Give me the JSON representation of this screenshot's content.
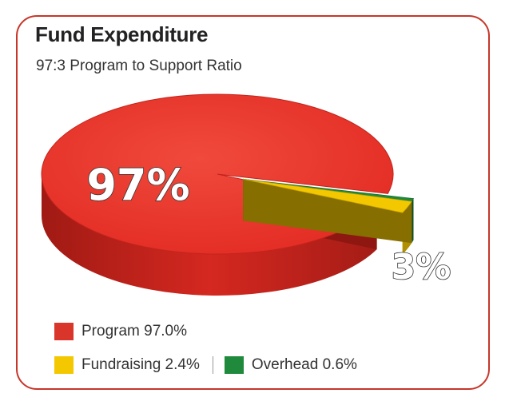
{
  "title": "Fund Expenditure",
  "subtitle": "97:3 Program to Support Ratio",
  "chart_data": {
    "type": "pie",
    "title": "Fund Expenditure",
    "subtitle": "97:3 Program to Support Ratio",
    "slices": [
      {
        "label": "Program",
        "value": 97.0,
        "legend": "Program 97.0%",
        "color": "#e8302a"
      },
      {
        "label": "Fundraising",
        "value": 2.4,
        "legend": "Fundraising 2.4%",
        "color": "#f4c800"
      },
      {
        "label": "Overhead",
        "value": 0.6,
        "legend": "Overhead 0.6%",
        "color": "#1f8a3c"
      }
    ],
    "annotations": {
      "program": "97%",
      "support": "3%"
    },
    "legend_position": "bottom-left",
    "style": "3d-exploded"
  }
}
